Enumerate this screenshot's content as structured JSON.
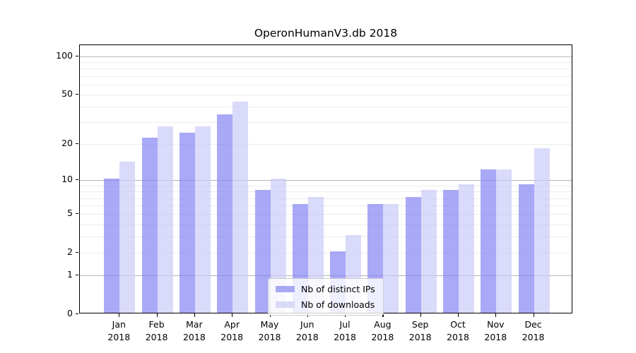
{
  "title": "OperonHumanV3.db 2018",
  "chart_data": {
    "type": "bar",
    "title": "OperonHumanV3.db 2018",
    "categories": [
      "Jan",
      "Feb",
      "Mar",
      "Apr",
      "May",
      "Jun",
      "Jul",
      "Aug",
      "Sep",
      "Oct",
      "Nov",
      "Dec"
    ],
    "year": "2018",
    "series": [
      {
        "name": "Nb of distinct IPs",
        "legend_color": "#a9a9f2",
        "fill_rgba": "rgba(125,125,245,0.66)",
        "values": [
          10,
          22,
          24,
          34,
          8,
          6,
          2,
          6,
          7,
          8,
          12,
          9
        ]
      },
      {
        "name": "Nb of downloads",
        "legend_color": "#d9d9f8",
        "fill_rgba": "rgba(200,200,248,0.68)",
        "values": [
          14,
          27,
          27,
          43,
          10,
          7,
          3,
          6,
          8,
          9,
          12,
          18
        ]
      }
    ],
    "yscale": "log1p",
    "ylim": [
      0,
      123
    ],
    "y_tick_values": [
      0,
      1,
      2,
      5,
      10,
      20,
      50,
      100
    ],
    "y_tick_labels": [
      "0",
      "1",
      "2",
      "5",
      "10",
      "20",
      "50",
      "100"
    ],
    "y_major_gridlines": [
      1,
      10,
      100
    ],
    "y_minor_gridlines": [
      2,
      3,
      4,
      5,
      6,
      7,
      8,
      9,
      20,
      30,
      40,
      50,
      60,
      70,
      80,
      90
    ],
    "grid": "on",
    "legend_position": "lower center",
    "xlabel": "",
    "ylabel": ""
  },
  "colors": {
    "grid_minor": "#ececec",
    "grid_major": "#b6b6b6",
    "axis": "#000000",
    "legend_border": "#cccccc"
  }
}
